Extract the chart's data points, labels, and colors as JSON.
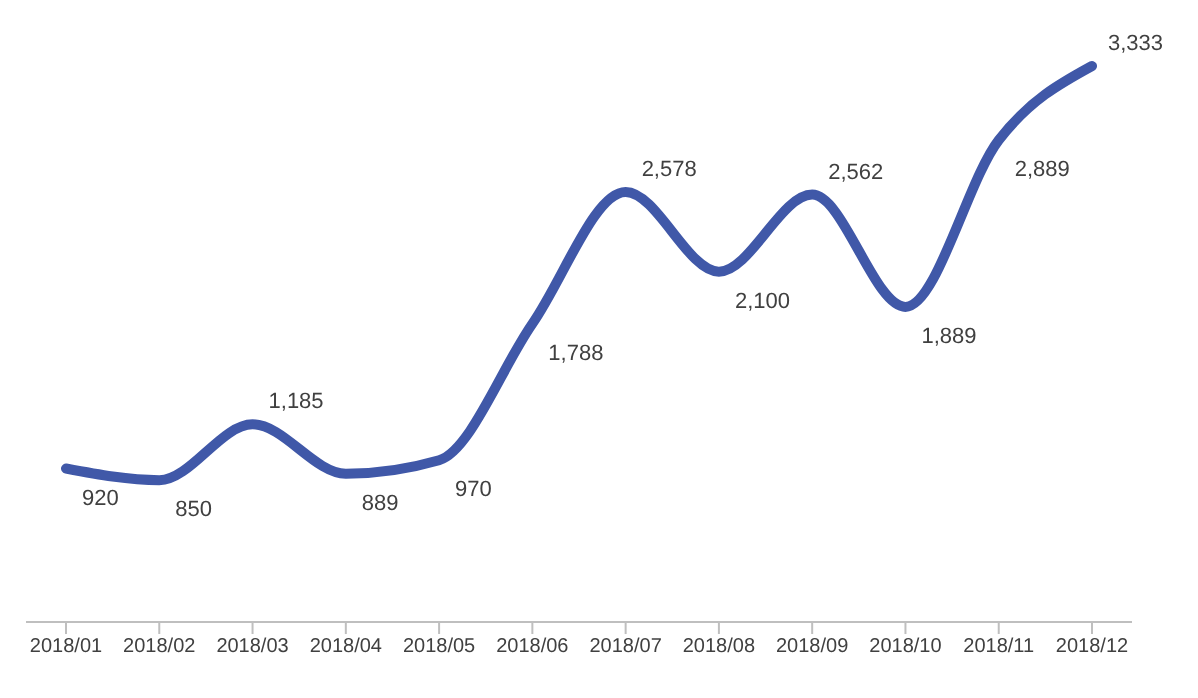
{
  "chart_data": {
    "type": "line",
    "categories": [
      "2018/01",
      "2018/02",
      "2018/03",
      "2018/04",
      "2018/05",
      "2018/06",
      "2018/07",
      "2018/08",
      "2018/09",
      "2018/10",
      "2018/11",
      "2018/12"
    ],
    "series": [
      {
        "color": "#4058a8",
        "values": [
          920,
          850,
          1185,
          889,
          970,
          1788,
          2578,
          2100,
          2562,
          1889,
          2889,
          3333
        ],
        "value_labels": [
          "920",
          "850",
          "1,185",
          "889",
          "970",
          "1,788",
          "2,578",
          "2,100",
          "2,562",
          "1,889",
          "2,889",
          "3,333"
        ]
      }
    ],
    "grid": false,
    "marker": "none",
    "line_style": "solid"
  }
}
